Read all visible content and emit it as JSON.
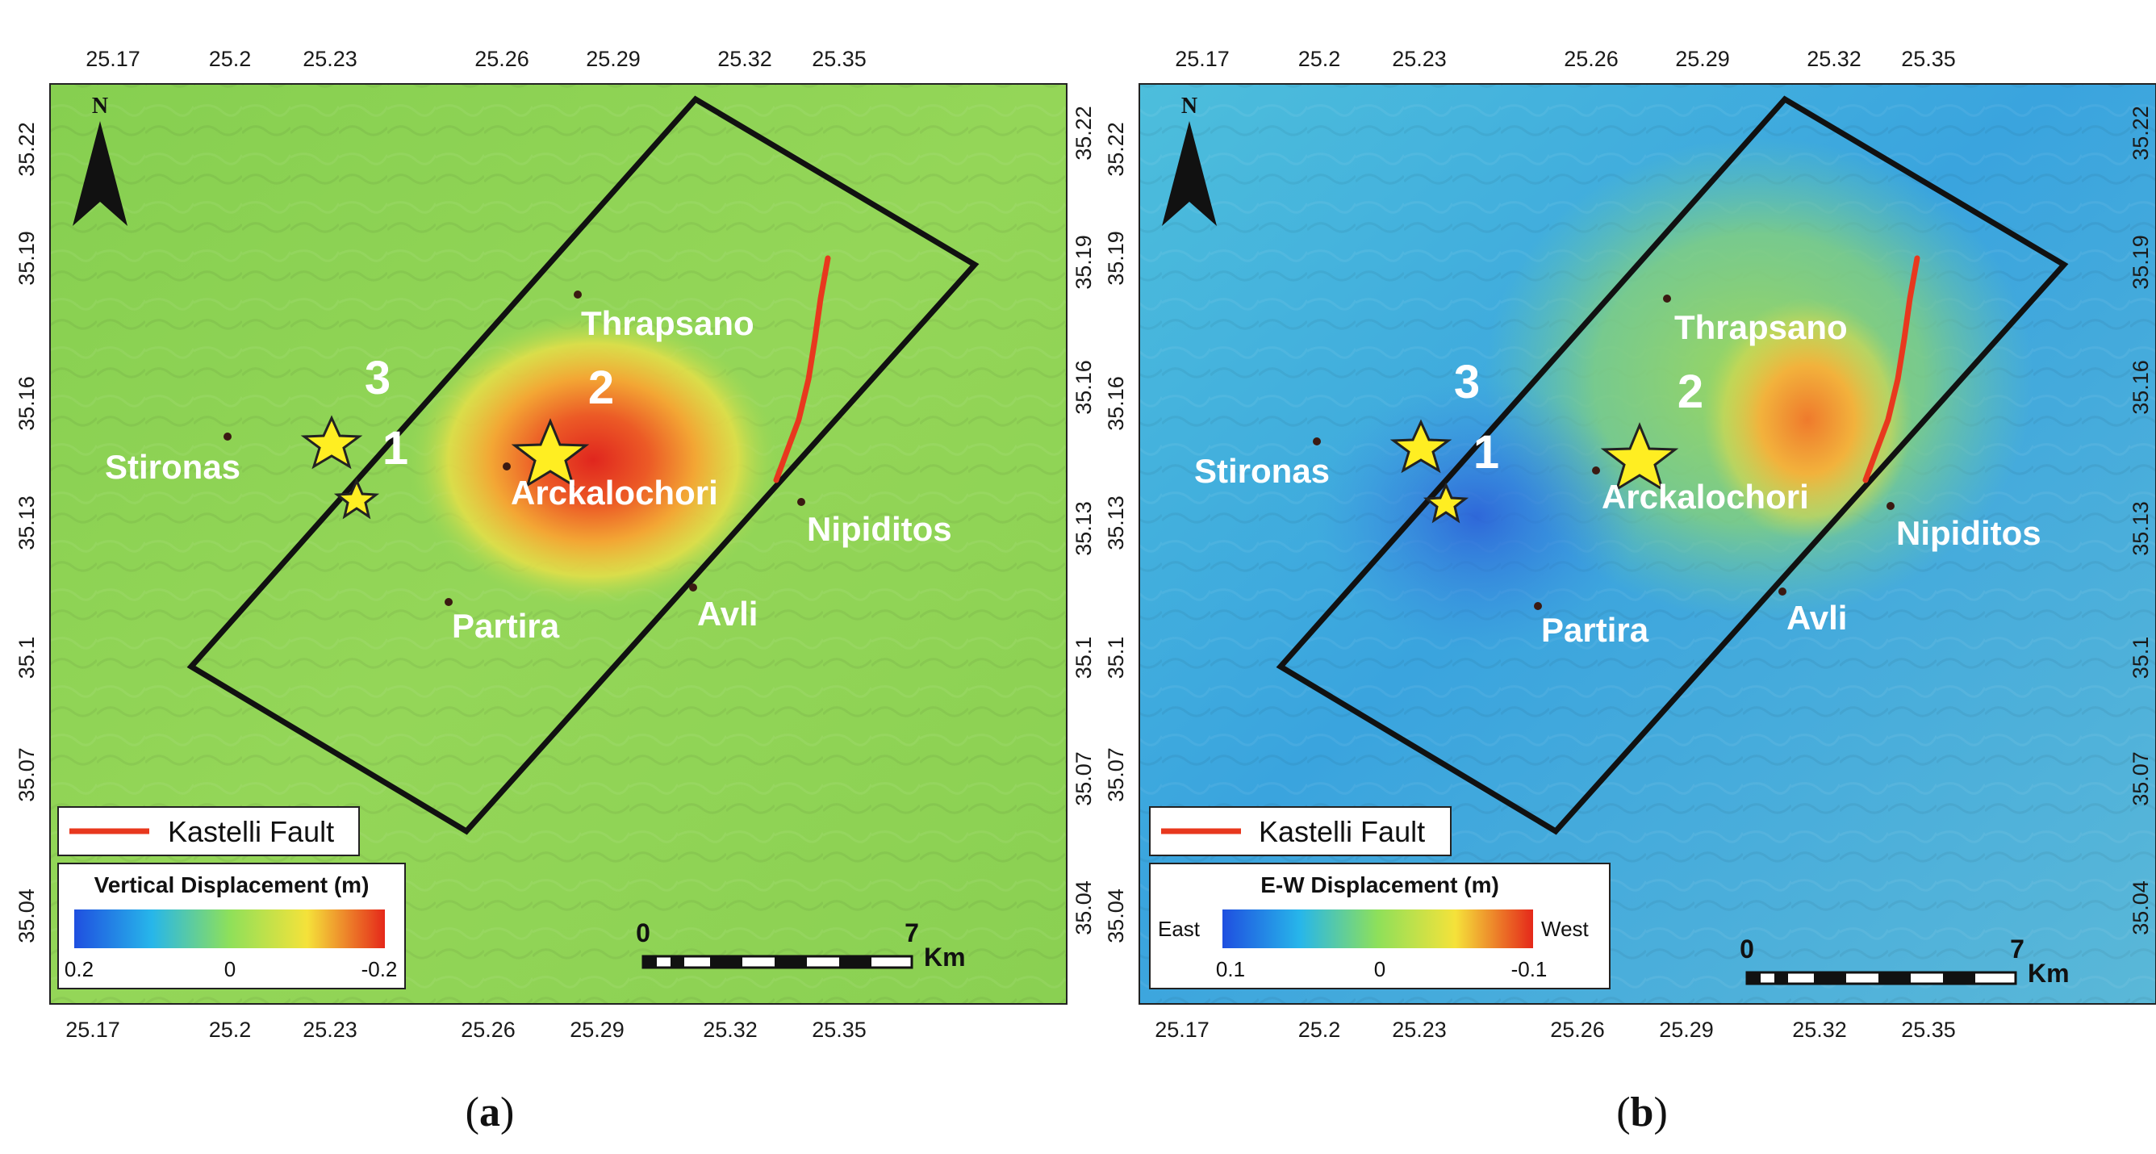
{
  "panels": [
    {
      "id": "a",
      "caption_open": "(",
      "caption_letter": "a",
      "caption_close": ")",
      "north_label": "N",
      "x_ticks": [
        "25.17",
        "25.2",
        "25.23",
        "25.26",
        "25.29",
        "25.32",
        "25.35"
      ],
      "y_ticks": [
        "35.22",
        "35.19",
        "35.16",
        "35.13",
        "35.1",
        "35.07",
        "35.04"
      ],
      "places": [
        "Thrapsano",
        "Stironas",
        "Arckalochori",
        "Nipiditos",
        "Partira",
        "Avli"
      ],
      "event_numbers": [
        "1",
        "2",
        "3"
      ],
      "fault_label": "Kastelli Fault",
      "legend_title": "Vertical Displacement (m)",
      "legend_left": "",
      "legend_right": "",
      "legend_ticks": [
        "0.2",
        "0",
        "-0.2"
      ],
      "scale_start": "0",
      "scale_end": "7",
      "scale_unit": "Km"
    },
    {
      "id": "b",
      "caption_open": "(",
      "caption_letter": "b",
      "caption_close": ")",
      "north_label": "N",
      "x_ticks": [
        "25.17",
        "25.2",
        "25.23",
        "25.26",
        "25.29",
        "25.32",
        "25.35"
      ],
      "y_ticks": [
        "35.22",
        "35.19",
        "35.16",
        "35.13",
        "35.1",
        "35.07",
        "35.04"
      ],
      "places": [
        "Thrapsano",
        "Stironas",
        "Arckalochori",
        "Nipiditos",
        "Partira",
        "Avli"
      ],
      "event_numbers": [
        "1",
        "2",
        "3"
      ],
      "fault_label": "Kastelli Fault",
      "legend_title": "E-W Displacement (m)",
      "legend_left": "East",
      "legend_right": "West",
      "legend_ticks": [
        "0.1",
        "0",
        "-0.1"
      ],
      "scale_start": "0",
      "scale_end": "7",
      "scale_unit": "Km"
    }
  ],
  "colors": {
    "frame": "#111111",
    "fault": "#e8381e",
    "star": "#ffee22",
    "star_stroke": "#222222",
    "label": "#ffffff"
  }
}
